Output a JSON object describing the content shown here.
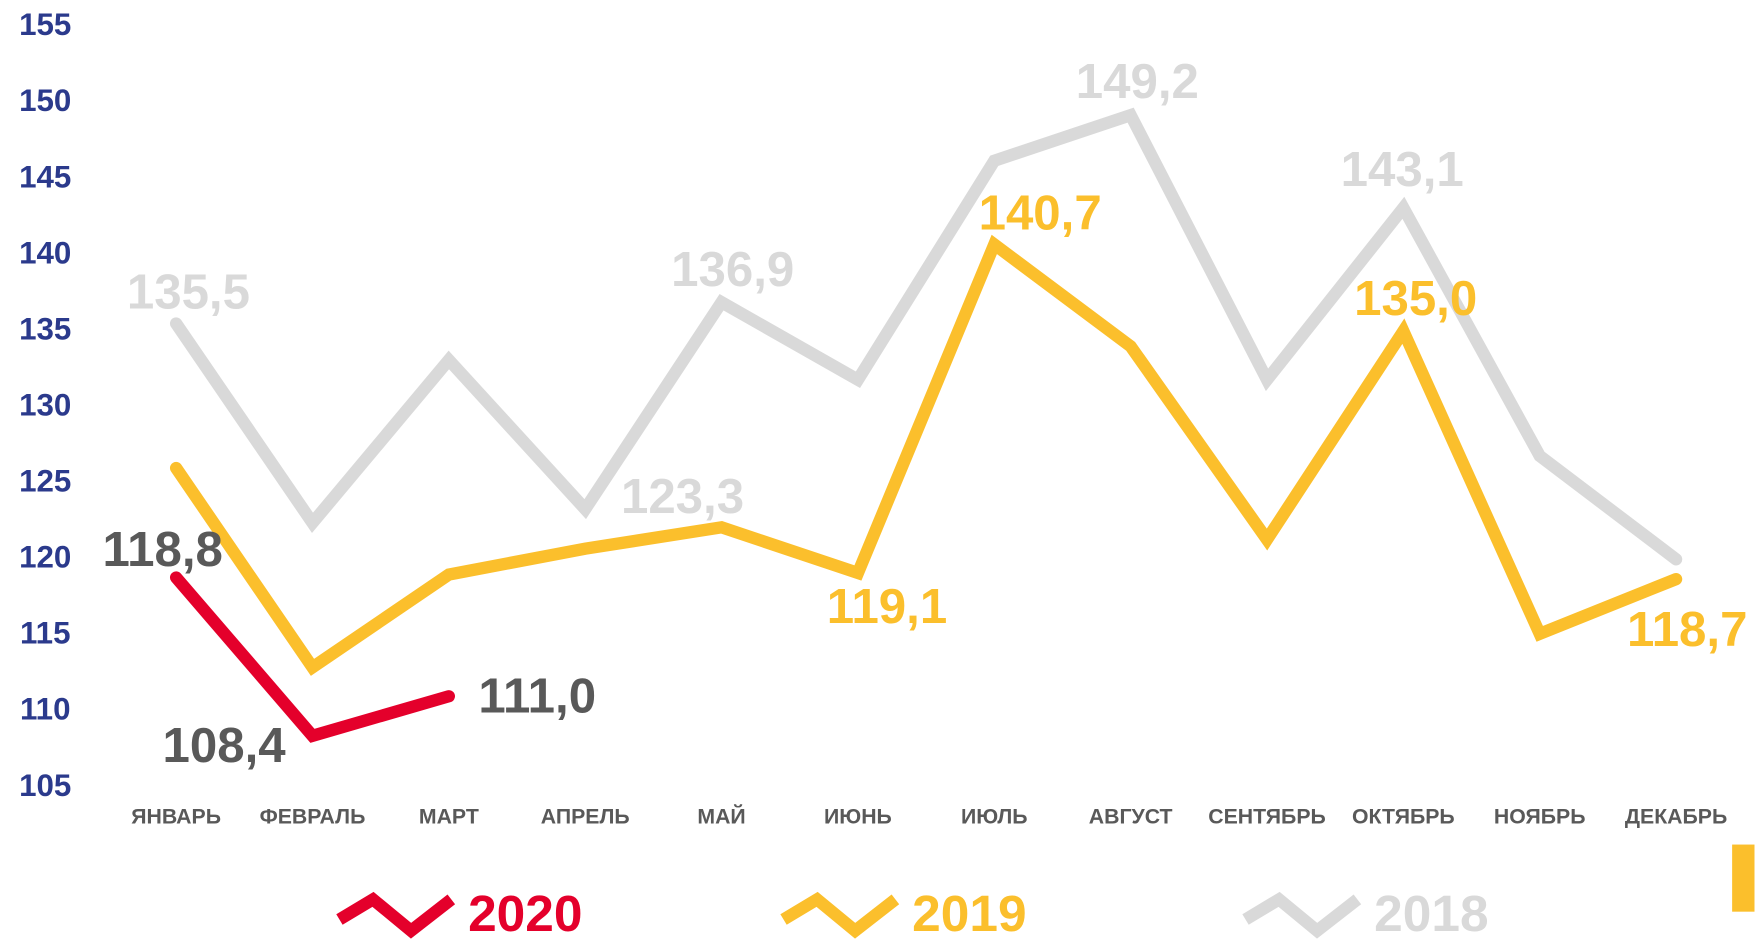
{
  "chart_data": {
    "type": "line",
    "categories": [
      "ЯНВАРЬ",
      "ФЕВРАЛЬ",
      "МАРТ",
      "АПРЕЛЬ",
      "МАЙ",
      "ИЮНЬ",
      "ИЮЛЬ",
      "АВГУСТ",
      "СЕНТЯБРЬ",
      "ОКТЯБРЬ",
      "НОЯБРЬ",
      "ДЕКАБРЬ"
    ],
    "series": [
      {
        "name": "2020",
        "color": "#e4002b",
        "label_color": "#595959",
        "values": [
          118.8,
          108.4,
          111.0,
          null,
          null,
          null,
          null,
          null,
          null,
          null,
          null,
          null
        ],
        "value_labels": [
          "118,8",
          "108,4",
          "111,0",
          null,
          null,
          null,
          null,
          null,
          null,
          null,
          null,
          null
        ]
      },
      {
        "name": "2019",
        "color": "#fbbf2c",
        "label_color": "#fbbf2c",
        "values": [
          126.0,
          112.9,
          119.0,
          120.7,
          122.1,
          119.1,
          140.7,
          134.0,
          121.3,
          135.0,
          115.1,
          118.7
        ],
        "value_labels": [
          null,
          null,
          null,
          null,
          null,
          "119,1",
          "140,7",
          null,
          null,
          "135,0",
          null,
          "118,7"
        ]
      },
      {
        "name": "2018",
        "color": "#d9d9d9",
        "label_color": "#d9d9d9",
        "values": [
          135.5,
          122.4,
          133.1,
          123.3,
          136.9,
          131.8,
          146.2,
          149.2,
          131.8,
          143.1,
          126.8,
          120.0
        ],
        "value_labels": [
          "135,5",
          null,
          null,
          "123,3",
          "136,9",
          null,
          null,
          "149,2",
          null,
          "143,1",
          null,
          null
        ]
      }
    ],
    "ylim": [
      105,
      155
    ],
    "yticks": [
      105,
      110,
      115,
      120,
      125,
      130,
      135,
      140,
      145,
      150,
      155
    ],
    "legend": "bottom"
  }
}
